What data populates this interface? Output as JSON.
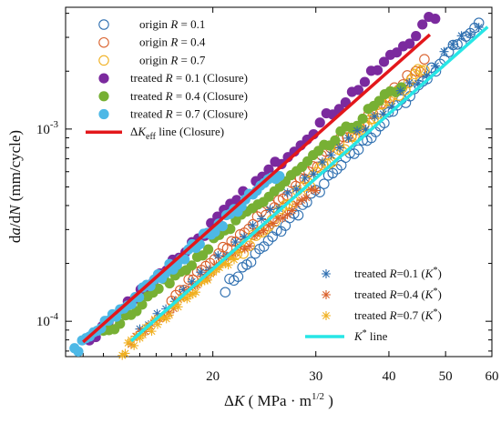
{
  "chart_data": {
    "type": "scatter",
    "xscale": "log",
    "yscale": "log",
    "xlim": [
      11.2,
      60
    ],
    "ylim": [
      6.55e-05,
      0.0043
    ],
    "xlabel": "ΔK ( MPa · m^1/2 )",
    "ylabel": "da/dN (mm/cycle)",
    "x_ticks": [
      20,
      30,
      40,
      50,
      60
    ],
    "y_ticks": [
      {
        "value": 0.0001,
        "label": "10^-4"
      },
      {
        "value": 0.001,
        "label": "10^-3"
      }
    ],
    "series": [
      {
        "name": "origin R = 0.1",
        "marker": "open-circle",
        "color": "#2e6fb0",
        "x_range": [
          21,
          57
        ],
        "y_range": [
          0.00015,
          0.0036
        ]
      },
      {
        "name": "origin R = 0.4",
        "marker": "open-circle",
        "color": "#d95f2a",
        "x_range": [
          17,
          46
        ],
        "y_range": [
          0.00013,
          0.0022
        ]
      },
      {
        "name": "origin R = 0.7",
        "marker": "open-circle",
        "color": "#f0b020",
        "x_range": [
          22,
          46
        ],
        "y_range": [
          0.00022,
          0.0021
        ]
      },
      {
        "name": "treated R = 0.1 (Closure)",
        "marker": "filled-circle",
        "color": "#7b2a9e",
        "x_range": [
          12.3,
          48
        ],
        "y_range": [
          8e-05,
          0.0039
        ]
      },
      {
        "name": "treated R = 0.4 (Closure)",
        "marker": "filled-circle",
        "color": "#77b034",
        "x_range": [
          13,
          42
        ],
        "y_range": [
          8.5e-05,
          0.0017
        ]
      },
      {
        "name": "treated R = 0.7 (Closure)",
        "marker": "filled-circle",
        "color": "#4db8e6",
        "x_range": [
          11.6,
          26
        ],
        "y_range": [
          7e-05,
          0.0006
        ]
      },
      {
        "name": "ΔK_eff line (Closure)",
        "marker": "line",
        "color": "#e3171b",
        "x": [
          12,
          47
        ],
        "y": [
          7.8e-05,
          0.0031
        ]
      },
      {
        "name": "treated R=0.1 (K*)",
        "marker": "asterisk",
        "color": "#2e6fb0",
        "x_range": [
          15,
          57
        ],
        "y_range": [
          9e-05,
          0.0035
        ]
      },
      {
        "name": "treated R=0.4 (K*)",
        "marker": "asterisk",
        "color": "#d95f2a",
        "x_range": [
          14.5,
          30
        ],
        "y_range": [
          8e-05,
          0.0005
        ]
      },
      {
        "name": "treated R=0.7 (K*)",
        "marker": "asterisk",
        "color": "#f0b020",
        "x_range": [
          14,
          22
        ],
        "y_range": [
          7e-05,
          0.00022
        ]
      },
      {
        "name": "K* line",
        "marker": "line",
        "color": "#27e6e6",
        "x": [
          14.5,
          59
        ],
        "y": [
          7.9e-05,
          0.0034
        ]
      }
    ],
    "legends": [
      {
        "position": "top-left",
        "entries": [
          {
            "marker": "open-circle",
            "color": "#2e6fb0",
            "text": "origin",
            "r": "R = 0.1"
          },
          {
            "marker": "open-circle",
            "color": "#d95f2a",
            "text": "origin",
            "r": "R = 0.4"
          },
          {
            "marker": "open-circle",
            "color": "#f0b020",
            "text": "origin",
            "r": "R = 0.7"
          },
          {
            "marker": "filled-circle",
            "color": "#7b2a9e",
            "text": "treated",
            "r": "R = 0.1 (Closure)"
          },
          {
            "marker": "filled-circle",
            "color": "#77b034",
            "text": "treated",
            "r": "R = 0.4 (Closure)"
          },
          {
            "marker": "filled-circle",
            "color": "#4db8e6",
            "text": "treated",
            "r": "R = 0.7 (Closure)"
          },
          {
            "marker": "line",
            "color": "#e3171b",
            "text": "ΔK",
            "sub": "eff",
            "rest": " line (Closure)"
          }
        ]
      },
      {
        "position": "bottom-right",
        "entries": [
          {
            "marker": "asterisk",
            "color": "#2e6fb0",
            "text": "treated ",
            "r": "R=0.1 (K*)"
          },
          {
            "marker": "asterisk",
            "color": "#d95f2a",
            "text": "treated ",
            "r": "R=0.4 (K*)"
          },
          {
            "marker": "asterisk",
            "color": "#f0b020",
            "text": "treated ",
            "r": "R=0.7 (K*)"
          },
          {
            "marker": "line",
            "color": "#27e6e6",
            "text": "K* line"
          }
        ]
      }
    ]
  }
}
